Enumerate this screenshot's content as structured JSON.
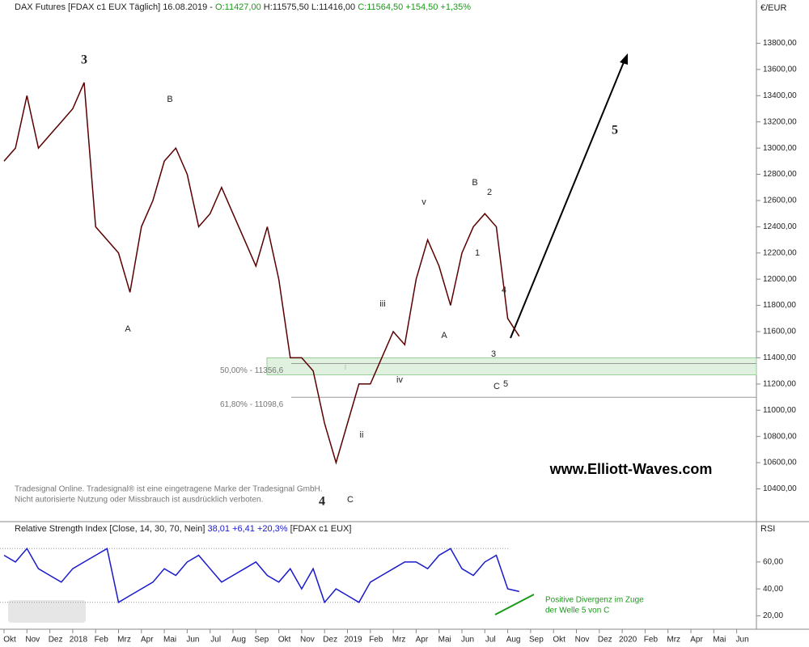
{
  "header": {
    "parts": [
      {
        "text": "DAX Futures [FDAX c1 EUX  Täglich] 16.08.2019 - ",
        "color": "#222222"
      },
      {
        "text": "O:11427,00",
        "color": "#1a9a1a"
      },
      {
        "text": " H:11575,50 L:11416,00 ",
        "color": "#222222"
      },
      {
        "text": "C:11564,50 +154,50 +1,35%",
        "color": "#1a9a1a"
      }
    ]
  },
  "chart_data": [
    {
      "type": "line",
      "unit": "€/EUR",
      "categories": [
        "Okt",
        null,
        "Nov",
        null,
        "Dez",
        null,
        "2018",
        null,
        "Feb",
        null,
        "Mrz",
        null,
        "Apr",
        null,
        "Mai",
        null,
        "Jun",
        null,
        "Jul",
        null,
        "Aug",
        null,
        "Sep",
        null,
        "Okt",
        null,
        "Nov",
        null,
        "Dez",
        null,
        "2019",
        null,
        "Feb",
        null,
        "Mrz",
        null,
        "Apr",
        null,
        "Mai",
        null,
        "Jun",
        null,
        "Jul",
        null,
        "Aug",
        null,
        "Sep",
        null,
        "Okt",
        null,
        "Nov",
        null,
        "Dez",
        null,
        "2020",
        null,
        "Feb",
        null,
        "Mrz",
        null,
        "Apr",
        null,
        "Mai",
        null,
        "Jun",
        null
      ],
      "series": [
        {
          "name": "DAX Futures",
          "color": "#5a0000",
          "values": [
            12900,
            13000,
            13400,
            13000,
            13100,
            13200,
            13300,
            13500,
            12400,
            12300,
            12200,
            11900,
            12400,
            12600,
            12900,
            13000,
            12800,
            12400,
            12500,
            12700,
            12500,
            12300,
            12100,
            12400,
            12000,
            11400,
            11400,
            11300,
            10900,
            10600,
            10900,
            11200,
            11200,
            11400,
            11600,
            11500,
            12000,
            12300,
            12100,
            11800,
            12200,
            12400,
            12500,
            12400,
            11700,
            11564.5,
            null,
            null,
            null,
            null,
            null,
            null,
            null,
            null,
            null,
            null,
            null,
            null,
            null,
            null,
            null,
            null,
            null,
            null,
            null,
            null
          ]
        }
      ],
      "ylim": [
        10150,
        14130
      ],
      "yticks": [
        {
          "value": 10400,
          "label": "10400,00"
        },
        {
          "value": 10600,
          "label": "10600,00"
        },
        {
          "value": 10800,
          "label": "10800,00"
        },
        {
          "value": 11000,
          "label": "11000,00"
        },
        {
          "value": 11200,
          "label": "11200,00"
        },
        {
          "value": 11400,
          "label": "11400,00"
        },
        {
          "value": 11600,
          "label": "11600,00"
        },
        {
          "value": 11800,
          "label": "11800,00"
        },
        {
          "value": 12000,
          "label": "12000,00"
        },
        {
          "value": 12200,
          "label": "12200,00"
        },
        {
          "value": 12400,
          "label": "12400,00"
        },
        {
          "value": 12600,
          "label": "12600,00"
        },
        {
          "value": 12800,
          "label": "12800,00"
        },
        {
          "value": 13000,
          "label": "13000,00"
        },
        {
          "value": 13200,
          "label": "13200,00"
        },
        {
          "value": 13400,
          "label": "13400,00"
        },
        {
          "value": 13600,
          "label": "13600,00"
        },
        {
          "value": 13800,
          "label": "13800,00"
        }
      ],
      "levels": [
        {
          "value": 11356.6,
          "label": "50,00% - 11356,6"
        },
        {
          "value": 11098.6,
          "label": "61,80% - 11098,6"
        }
      ],
      "annotations": [
        "3",
        "B",
        "A",
        "4",
        "C",
        "i",
        "ii",
        "iii",
        "iv",
        "v",
        "A",
        "B",
        "1",
        "2",
        "3",
        "4",
        "5",
        "C",
        "5",
        "www.Elliott-Waves.com"
      ],
      "notes": [
        "Tradesignal Online. Tradesignal® ist eine eingetragene Marke der Tradesignal GmbH.",
        "Nicht autorisierte Nutzung oder Missbrauch ist ausdrücklich verboten."
      ]
    },
    {
      "type": "line",
      "title": "Relative Strength Index [Close, 14, 30, 70, Nein]",
      "subtitle": "38,01 +6,41 +20,3%",
      "source": "[FDAX c1 EUX]",
      "unit": "RSI",
      "series": [
        {
          "name": "RSI",
          "color": "#1a1acc",
          "values": [
            65,
            60,
            70,
            55,
            50,
            45,
            55,
            60,
            65,
            70,
            30,
            35,
            40,
            45,
            55,
            50,
            60,
            65,
            55,
            45,
            50,
            55,
            60,
            50,
            45,
            55,
            40,
            55,
            30,
            40,
            35,
            30,
            45,
            50,
            55,
            60,
            60,
            55,
            65,
            70,
            55,
            50,
            60,
            65,
            40,
            38.01
          ]
        }
      ],
      "ylim": [
        10,
        90
      ],
      "yticks": [
        {
          "value": 20,
          "label": "20,00"
        },
        {
          "value": 40,
          "label": "40,00"
        },
        {
          "value": 60,
          "label": "60,00"
        }
      ],
      "bands": [
        30,
        70
      ],
      "annotation": [
        "Positive Divergenz im Zuge",
        "der Welle 5 von C"
      ]
    }
  ]
}
